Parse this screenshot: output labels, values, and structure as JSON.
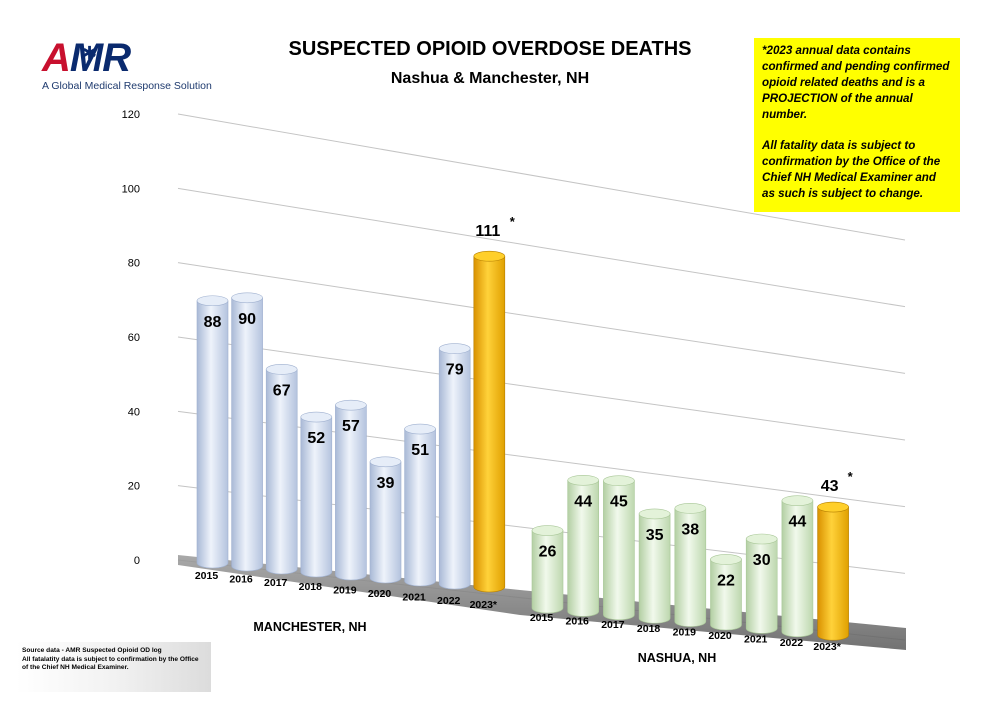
{
  "logo": {
    "text_a": "A",
    "text_mr": "MR",
    "tagline": "A Global Medical Response Solution",
    "icon": "star-of-life-icon"
  },
  "title": "SUSPECTED OPIOID OVERDOSE DEATHS",
  "subtitle": "Nashua & Manchester, NH",
  "note": {
    "p1": "*2023 annual data contains confirmed and pending confirmed opioid related deaths and is a PROJECTION of the annual number.",
    "p2": "All fatality data is subject to confirmation by the Office of the Chief NH Medical Examiner and as such is subject to change."
  },
  "source": {
    "line1": "Source data - AMR Suspected Opioid OD log",
    "line2": "All fatalatity data is subject to confirmation by the Office of the Chief NH Medical Examiner."
  },
  "colors": {
    "regular_manchester": "#cfdcef",
    "regular_nashua": "#d6ecc8",
    "projection": "#f5b400"
  },
  "chart_data": {
    "type": "bar",
    "title": "SUSPECTED OPIOID OVERDOSE DEATHS",
    "subtitle": "Nashua & Manchester, NH",
    "ylim": [
      0,
      120
    ],
    "yticks": [
      0,
      20,
      40,
      60,
      80,
      100,
      120
    ],
    "grid": true,
    "groups": [
      {
        "name": "MANCHESTER, NH",
        "categories": [
          "2015",
          "2016",
          "2017",
          "2018",
          "2019",
          "2020",
          "2021",
          "2022",
          "2023*"
        ],
        "values": [
          88,
          90,
          67,
          52,
          57,
          39,
          51,
          79,
          111
        ],
        "labels": [
          "88",
          "90",
          "67",
          "52",
          "57",
          "39",
          "51",
          "79",
          "111"
        ],
        "projection_index": 8
      },
      {
        "name": "NASHUA, NH",
        "categories": [
          "2015",
          "2016",
          "2017",
          "2018",
          "2019",
          "2020",
          "2021",
          "2022",
          "2023*"
        ],
        "values": [
          26,
          44,
          45,
          35,
          38,
          22,
          30,
          44,
          43
        ],
        "labels": [
          "26",
          "44",
          "45",
          "35",
          "38",
          "22",
          "30",
          "44",
          "43"
        ],
        "projection_index": 8
      }
    ],
    "asterisk": "*"
  }
}
